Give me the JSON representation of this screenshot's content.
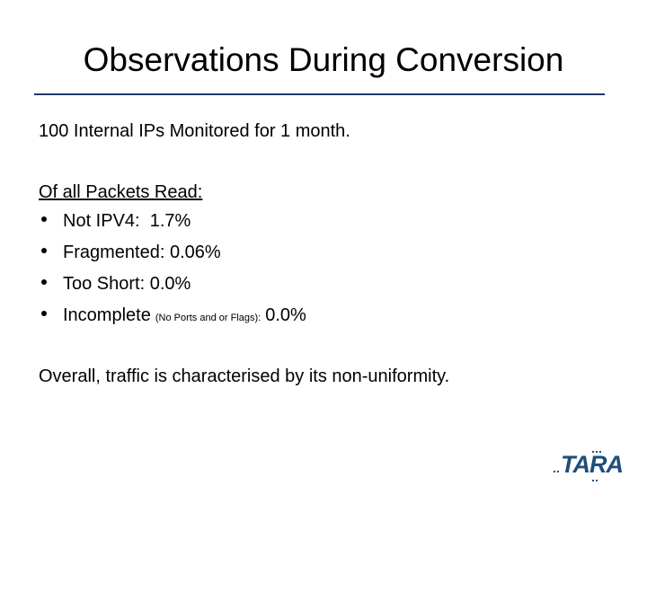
{
  "slide": {
    "title": "Observations During Conversion",
    "intro": "100 Internal IPs Monitored for 1 month.",
    "list_heading": "Of all Packets Read:",
    "bullets": [
      {
        "text": "Not IPV4:  1.7%"
      },
      {
        "text": "Fragmented: 0.06%"
      },
      {
        "text": "Too Short: 0.0%"
      },
      {
        "text": "Incomplete",
        "note": "(No Ports and or Flags):",
        "value": "0.0%"
      }
    ],
    "closing": "Overall, traffic is characterised by its non-uniformity.",
    "logo": "TARA"
  }
}
